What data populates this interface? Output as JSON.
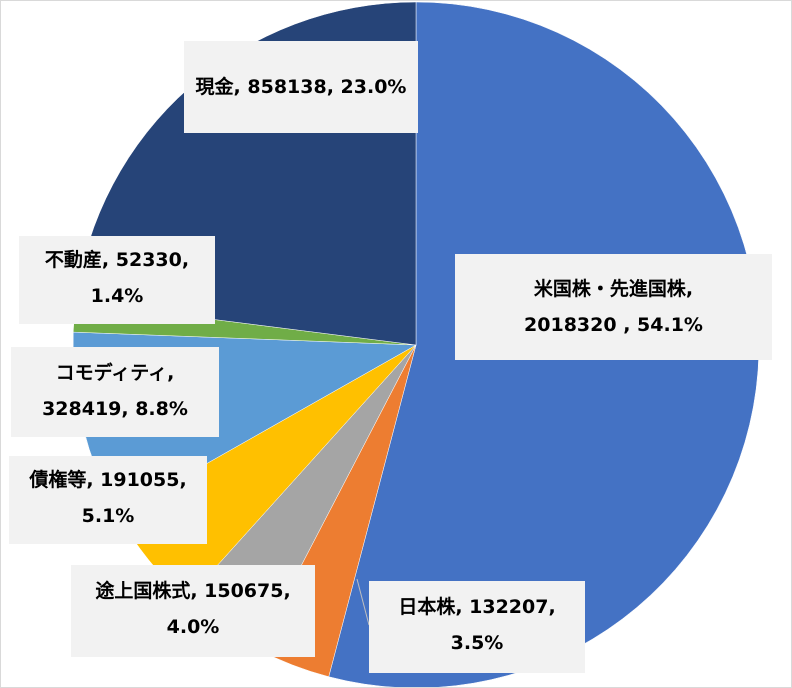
{
  "chart_data": {
    "type": "pie",
    "start_angle_deg": 0,
    "direction": "clockwise",
    "slices": [
      {
        "name": "米国株・先進国株",
        "value": 2018320,
        "percent": "54.1%",
        "color": "#4472C4",
        "label_lines": [
          "米国株・先進国株,",
          "2018320 , 54.1%"
        ]
      },
      {
        "name": "日本株",
        "value": 132207,
        "percent": "3.5%",
        "color": "#ED7D31",
        "label_lines": [
          "日本株, 132207,",
          "3.5%"
        ]
      },
      {
        "name": "途上国株式",
        "value": 150675,
        "percent": "4.0%",
        "color": "#A5A5A5",
        "label_lines": [
          "途上国株式, 150675,",
          "4.0%"
        ]
      },
      {
        "name": "債権等",
        "value": 191055,
        "percent": "5.1%",
        "color": "#FFC000",
        "label_lines": [
          "債権等, 191055,",
          "5.1%"
        ]
      },
      {
        "name": "コモディティ",
        "value": 328419,
        "percent": "8.8%",
        "color": "#5B9BD5",
        "label_lines": [
          "コモディティ,",
          "328419, 8.8%"
        ]
      },
      {
        "name": "不動産",
        "value": 52330,
        "percent": "1.4%",
        "color": "#70AD47",
        "label_lines": [
          "不動産, 52330,",
          "1.4%"
        ]
      },
      {
        "name": "現金",
        "value": 858138,
        "percent": "23.0%",
        "color": "#264478",
        "label_lines": [
          "現金, 858138, 23.0%"
        ]
      }
    ]
  }
}
